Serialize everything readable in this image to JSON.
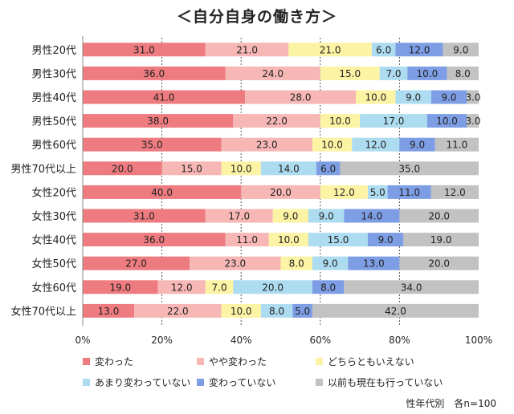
{
  "chart_data": {
    "type": "bar",
    "orientation": "horizontal",
    "stacked": true,
    "title": "＜自分自身の働き方＞",
    "note": "性年代別　各n=100",
    "categories": [
      "男性20代",
      "男性30代",
      "男性40代",
      "男性50代",
      "男性60代",
      "男性70代以上",
      "女性20代",
      "女性30代",
      "女性40代",
      "女性50代",
      "女性60代",
      "女性70代以上"
    ],
    "xlim": [
      0,
      100
    ],
    "x_ticks": [
      "0%",
      "20%",
      "40%",
      "60%",
      "80%",
      "100%"
    ],
    "legend_position": "bottom",
    "series": [
      {
        "name": "変わった",
        "color": "#EE7B7F",
        "values": [
          31.0,
          36.0,
          41.0,
          38.0,
          35.0,
          20.0,
          40.0,
          31.0,
          36.0,
          27.0,
          19.0,
          13.0
        ],
        "labels": [
          "31.0",
          "36.0",
          "41.0",
          "38.0",
          "35.0",
          "20.0",
          "40.0",
          "31.0",
          "36.0",
          "27.0",
          "19.0",
          "13.0"
        ]
      },
      {
        "name": "やや変わった",
        "color": "#F6B7B5",
        "values": [
          21.0,
          24.0,
          28.0,
          22.0,
          23.0,
          15.0,
          20.0,
          17.0,
          11.0,
          23.0,
          12.0,
          22.0
        ],
        "labels": [
          "21.0",
          "24.0",
          "28.0",
          "22.0",
          "23.0",
          "15.0",
          "20.0",
          "17.0",
          "11.0",
          "23.0",
          "12.0",
          "22.0"
        ]
      },
      {
        "name": "どちらともいえない",
        "color": "#FCF3A4",
        "values": [
          21.0,
          15.0,
          10.0,
          10.0,
          10.0,
          10.0,
          12.0,
          9.0,
          10.0,
          8.0,
          7.0,
          10.0
        ],
        "labels": [
          "21.0",
          "15.0",
          "10.0",
          "10.0",
          "10.0",
          "10.0",
          "12.0",
          "9.0",
          "10.0",
          "8.0",
          "7.0",
          "10.0"
        ]
      },
      {
        "name": "あまり変わっていない",
        "color": "#ADDCF0",
        "values": [
          6.0,
          7.0,
          9.0,
          17.0,
          12.0,
          14.0,
          5.0,
          9.0,
          15.0,
          9.0,
          20.0,
          8.0
        ],
        "labels": [
          "6.0",
          "7.0",
          "9.0",
          "17.0",
          "12.0",
          "14.0",
          "5.0",
          "9.0",
          "15.0",
          "9.0",
          "20.0",
          "8.0"
        ]
      },
      {
        "name": "変わっていない",
        "color": "#7D9EE4",
        "values": [
          12.0,
          10.0,
          9.0,
          10.0,
          9.0,
          6.0,
          11.0,
          14.0,
          9.0,
          13.0,
          8.0,
          5.0
        ],
        "labels": [
          "12.0",
          "10.0",
          "9.0",
          "10.0",
          "9.0",
          "6.0",
          "11.0",
          "14.0",
          "9.0",
          "13.0",
          "8.0",
          "5.0"
        ]
      },
      {
        "name": "以前も現在も行っていない",
        "color": "#C2C2C2",
        "values": [
          9.0,
          8.0,
          3.0,
          3.0,
          11.0,
          35.0,
          12.0,
          20.0,
          19.0,
          20.0,
          34.0,
          42.0
        ],
        "labels": [
          "9.0",
          "8.0",
          "3.0",
          "3.0",
          "11.0",
          "35.0",
          "12.0",
          "20.0",
          "19.0",
          "20.0",
          "34.0",
          "42.0"
        ]
      }
    ]
  }
}
